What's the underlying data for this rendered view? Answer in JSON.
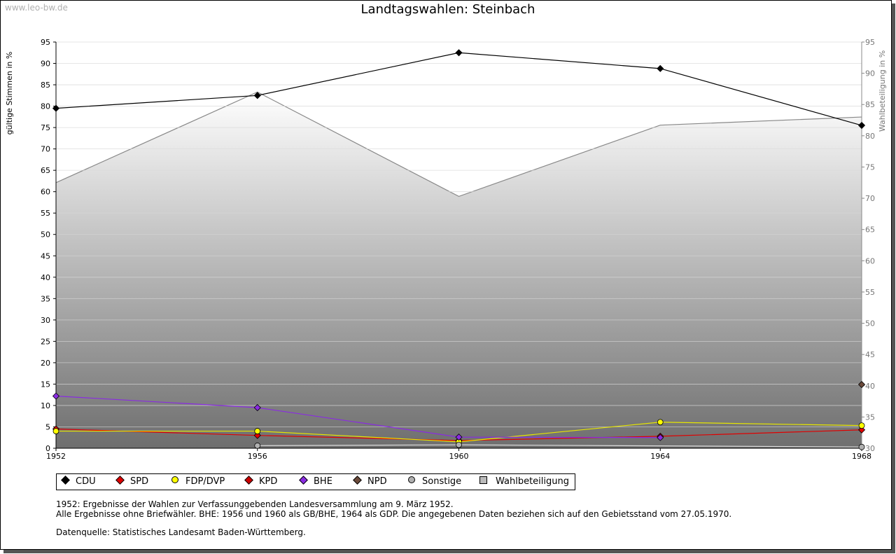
{
  "watermark": "www.leo-bw.de",
  "chart_data": {
    "type": "line",
    "title": "Landtagswahlen: Steinbach",
    "ylabel": "gültige Stimmen in %",
    "y2label": "Wahlbeteiligung in %",
    "ylim": [
      0,
      95
    ],
    "y2lim": [
      30,
      95
    ],
    "yticks": [
      0,
      5,
      10,
      15,
      20,
      25,
      30,
      35,
      40,
      45,
      50,
      55,
      60,
      65,
      70,
      75,
      80,
      85,
      90,
      95
    ],
    "y2ticks": [
      30,
      35,
      40,
      45,
      50,
      55,
      60,
      65,
      70,
      75,
      80,
      85,
      90,
      95
    ],
    "x": [
      1952,
      1956,
      1960,
      1964,
      1968
    ],
    "series": [
      {
        "name": "CDU",
        "color": "#000000",
        "values": [
          79.5,
          82.5,
          92.5,
          88.8,
          75.5
        ]
      },
      {
        "name": "SPD",
        "color": "#e00000",
        "values": [
          4.5,
          3.0,
          1.8,
          2.8,
          4.3
        ]
      },
      {
        "name": "FDP/DVP",
        "color": "#ffff00",
        "values": [
          4.0,
          4.0,
          1.5,
          6.1,
          5.3
        ]
      },
      {
        "name": "KPD",
        "color": "#cc0000",
        "values": [
          null,
          null,
          null,
          null,
          null
        ]
      },
      {
        "name": "BHE",
        "color": "#8a2be2",
        "values": [
          12.2,
          9.5,
          2.6,
          2.5,
          null
        ]
      },
      {
        "name": "NPD",
        "color": "#6b4a3a",
        "values": [
          null,
          null,
          null,
          null,
          14.9
        ]
      },
      {
        "name": "Sonstige",
        "color": "#b0b0b0",
        "values": [
          null,
          0.6,
          0.8,
          null,
          0.3
        ]
      }
    ],
    "turnout": {
      "name": "Wahlbeteiligung",
      "values": [
        72.5,
        87.0,
        70.3,
        81.7,
        83.0
      ]
    }
  },
  "legend": [
    {
      "label": "CDU",
      "color": "#000000",
      "shape": "diamond"
    },
    {
      "label": "SPD",
      "color": "#e00000",
      "shape": "diamond"
    },
    {
      "label": "FDP/DVP",
      "color": "#ffff00",
      "shape": "round"
    },
    {
      "label": "KPD",
      "color": "#cc0000",
      "shape": "diamond"
    },
    {
      "label": "BHE",
      "color": "#8a2be2",
      "shape": "diamond"
    },
    {
      "label": "NPD",
      "color": "#6b4a3a",
      "shape": "diamond"
    },
    {
      "label": "Sonstige",
      "color": "#b0b0b0",
      "shape": "round"
    },
    {
      "label": "Wahlbeteiligung",
      "color": "#bbbbbb",
      "shape": "square"
    }
  ],
  "notes": {
    "line1": "1952: Ergebnisse der Wahlen zur Verfassunggebenden Landesversammlung am 9. März 1952.",
    "line2": "Alle Ergebnisse ohne Briefwähler. BHE: 1956 und 1960 als GB/BHE, 1964 als GDP. Die angegebenen Daten beziehen sich auf den Gebietsstand vom 27.05.1970.",
    "source": "Datenquelle: Statistisches Landesamt Baden-Württemberg."
  }
}
